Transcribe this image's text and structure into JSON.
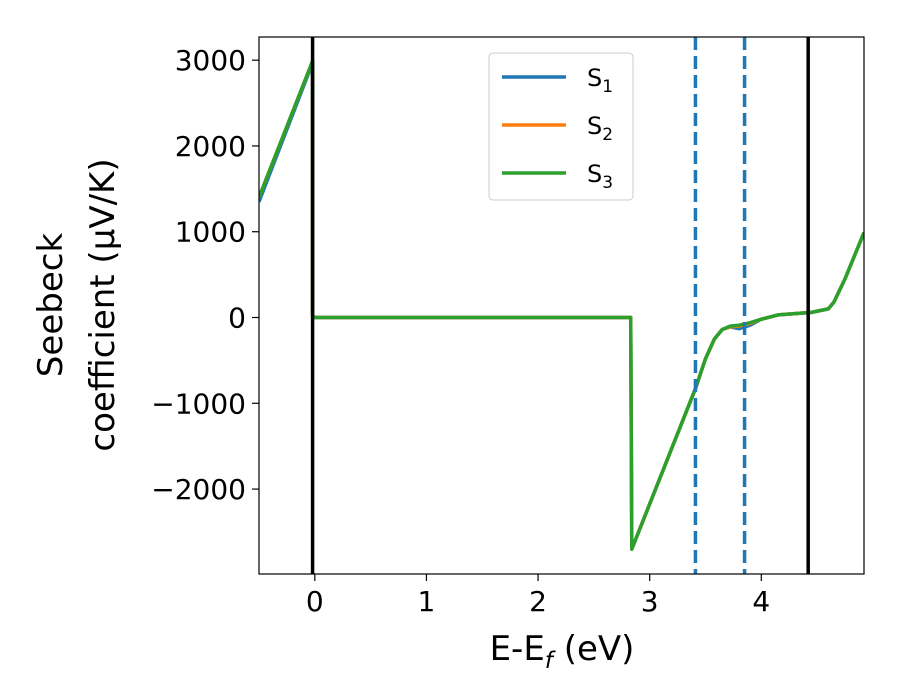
{
  "chart_data": {
    "type": "line",
    "xlabel": "E-E_f (eV)",
    "xlabel_parts": {
      "main": "E-E",
      "sub": "f",
      "rest": " (eV)"
    },
    "ylabel_line1": "Seebeck",
    "ylabel_line2": "coefficient  (μV/K)",
    "xlim": [
      -0.5,
      4.92
    ],
    "ylim": [
      -2990,
      3270
    ],
    "xticks": [
      0,
      1,
      2,
      3,
      4
    ],
    "xtick_labels": [
      "0",
      "1",
      "2",
      "3",
      "4"
    ],
    "yticks": [
      3000,
      2000,
      1000,
      0,
      -1000,
      -2000
    ],
    "ytick_labels": [
      "3000",
      "2000",
      "1000",
      "0",
      "−1000",
      "−2000"
    ],
    "grid": false,
    "legend_placement": "upper center",
    "vlines": [
      {
        "x": -0.02,
        "style": "solid",
        "color": "#000000"
      },
      {
        "x": 4.42,
        "style": "solid",
        "color": "#000000"
      },
      {
        "x": 3.41,
        "style": "dashed",
        "color": "#1f77b4"
      },
      {
        "x": 3.85,
        "style": "dashed",
        "color": "#1f77b4"
      }
    ],
    "series": [
      {
        "name": "S1",
        "base": "S",
        "sub": "1",
        "color": "#1f77b4",
        "x": [
          -0.5,
          -0.02,
          -0.02,
          0.0,
          2.83,
          2.83,
          2.84,
          3.41,
          3.5,
          3.58,
          3.65,
          3.72,
          3.8,
          3.9,
          4.0,
          4.15,
          4.3,
          4.45,
          4.6,
          4.65,
          4.75,
          4.92
        ],
        "y": [
          1350,
          2970,
          20,
          0,
          0,
          0,
          -2700,
          -830,
          -480,
          -250,
          -140,
          -110,
          -130,
          -90,
          -20,
          30,
          45,
          60,
          100,
          180,
          450,
          990
        ]
      },
      {
        "name": "S2",
        "base": "S",
        "sub": "2",
        "color": "#ff7f0e",
        "x": [
          -0.5,
          -0.02,
          -0.02,
          0.0,
          2.83,
          2.83,
          2.84,
          3.41,
          3.5,
          3.58,
          3.65,
          3.72,
          3.8,
          3.9,
          4.0,
          4.15,
          4.3,
          4.45,
          4.6,
          4.65,
          4.75,
          4.92
        ],
        "y": [
          1400,
          2990,
          20,
          0,
          0,
          0,
          -2700,
          -830,
          -480,
          -250,
          -140,
          -110,
          -100,
          -70,
          -20,
          30,
          45,
          60,
          100,
          180,
          450,
          990
        ]
      },
      {
        "name": "S3",
        "base": "S",
        "sub": "3",
        "color": "#2ca02c",
        "x": [
          -0.5,
          -0.02,
          -0.02,
          0.0,
          2.83,
          2.83,
          2.84,
          3.41,
          3.5,
          3.58,
          3.65,
          3.72,
          3.8,
          3.9,
          4.0,
          4.15,
          4.3,
          4.45,
          4.6,
          4.65,
          4.75,
          4.92
        ],
        "y": [
          1400,
          2990,
          20,
          0,
          0,
          0,
          -2700,
          -830,
          -480,
          -250,
          -140,
          -100,
          -90,
          -60,
          -20,
          30,
          45,
          60,
          100,
          180,
          450,
          990
        ]
      }
    ]
  }
}
